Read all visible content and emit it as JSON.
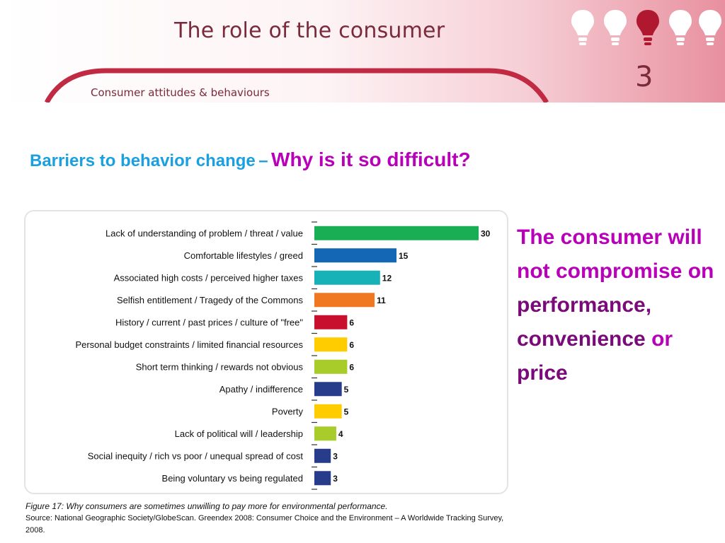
{
  "header": {
    "title": "The role of the consumer",
    "subtitle": "Consumer attitudes & behaviours",
    "chapter_number": "3"
  },
  "heading": {
    "part1": "Barriers to behavior change",
    "dash": "–",
    "part2": "Why is it so difficult?"
  },
  "side_text": {
    "line1": "The consumer will not compromise on",
    "w_performance": "performance,",
    "w_convenience": "convenience",
    "w_or": "or",
    "w_price": "price"
  },
  "caption": {
    "figure": "Figure 17: Why consumers are sometimes unwilling to pay more for environmental performance.",
    "source": "Source: National Geographic Society/GlobeScan. Greendex 2008: Consumer Choice and the Environment – A Worldwide Tracking Survey, 2008."
  },
  "colors": {
    "brand": "#7a2a3a",
    "heading_blue": "#1aa0e0",
    "heading_magenta": "#b800b8",
    "bulb_white": "#ffffff",
    "bulb_active": "#b01830"
  },
  "chart_data": {
    "type": "bar",
    "orientation": "horizontal",
    "categories": [
      "Lack of understanding of problem / threat / value",
      "Comfortable lifestyles / greed",
      "Associated high costs / perceived higher taxes",
      "Selfish entitlement / Tragedy of the Commons",
      "History / current / past prices / culture of \"free\"",
      "Personal budget constraints / limited financial resources",
      "Short term thinking / rewards not obvious",
      "Apathy / indifference",
      "Poverty",
      "Lack of political will / leadership",
      "Social inequity / rich vs poor / unequal spread of cost",
      "Being voluntary vs being regulated"
    ],
    "values": [
      30,
      15,
      12,
      11,
      6,
      6,
      6,
      5,
      5,
      4,
      3,
      3
    ],
    "bar_colors": [
      "#1aae54",
      "#1467b4",
      "#17b2b8",
      "#f07820",
      "#c8102e",
      "#ffcc00",
      "#a8cc2a",
      "#283c8c",
      "#ffcc00",
      "#a8cc2a",
      "#283c8c",
      "#283c8c"
    ],
    "xlim": [
      0,
      30
    ],
    "data_labels": true,
    "grid": false
  }
}
